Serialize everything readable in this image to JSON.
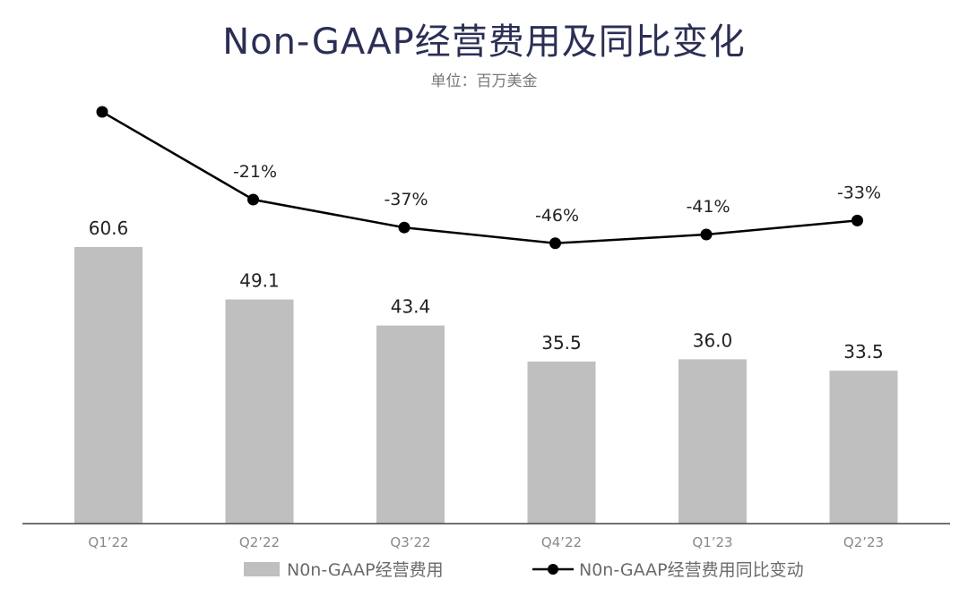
{
  "header": {
    "title": "Non-GAAP经营费用及同比变化",
    "subtitle": "单位：百万美金"
  },
  "colors": {
    "bar": "#bfbfbf",
    "line": "#000000",
    "title": "#2b2f55",
    "axis_text": "#8a8a8a"
  },
  "chart_data": {
    "type": "bar",
    "title": "Non-GAAP经营费用及同比变化",
    "subtitle": "单位：百万美金",
    "categories": [
      "Q1’22",
      "Q2’22",
      "Q3’22",
      "Q4’22",
      "Q1’23",
      "Q2’23"
    ],
    "series": [
      {
        "name": "N0n-GAAP经营费用",
        "type": "bar",
        "values": [
          60.6,
          49.1,
          43.4,
          35.5,
          36.0,
          33.5
        ],
        "labels": [
          "60.6",
          "49.1",
          "43.4",
          "35.5",
          "36.0",
          "33.5"
        ]
      },
      {
        "name": "N0n-GAAP经营费用同比变动",
        "type": "line",
        "values": [
          null,
          -21,
          -37,
          -46,
          -41,
          -33
        ],
        "labels": [
          "",
          "-21%",
          "-37%",
          "-46%",
          "-41%",
          "-33%"
        ]
      }
    ],
    "legend": [
      "N0n-GAAP经营费用",
      "N0n-GAAP经营费用同比变动"
    ],
    "xlabel": "",
    "ylabel": "",
    "legend_position": "bottom",
    "grid": false
  }
}
